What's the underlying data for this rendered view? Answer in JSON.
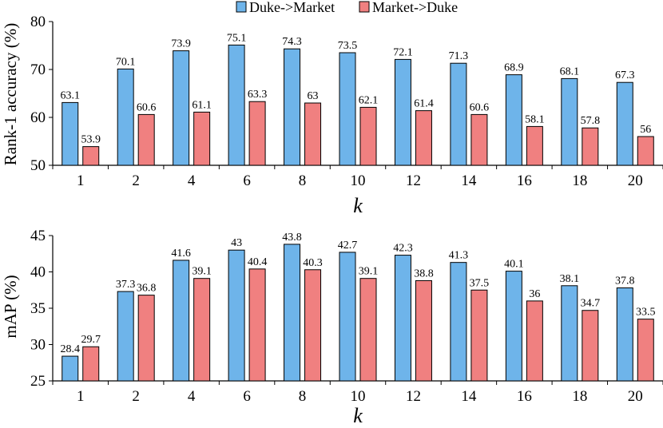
{
  "legend": {
    "series1": "Duke->Market",
    "series2": "Market->Duke"
  },
  "colors": {
    "series1": "#6eb4ea",
    "series2": "#f08080",
    "stroke": "#000000"
  },
  "chart_data": [
    {
      "type": "bar",
      "categories": [
        "1",
        "2",
        "4",
        "6",
        "8",
        "10",
        "12",
        "14",
        "16",
        "18",
        "20"
      ],
      "series": [
        {
          "name": "Duke->Market",
          "values": [
            63.1,
            70.1,
            73.9,
            75.1,
            74.3,
            73.5,
            72.1,
            71.3,
            68.9,
            68.1,
            67.3
          ],
          "labels": [
            "63.1",
            "70.1",
            "73.9",
            "75.1",
            "74.3",
            "73.5",
            "72.1",
            "71.3",
            "68.9",
            "68.1",
            "67.3"
          ]
        },
        {
          "name": "Market->Duke",
          "values": [
            53.9,
            60.6,
            61.1,
            63.3,
            63,
            62.1,
            61.4,
            60.6,
            58.1,
            57.8,
            56
          ],
          "labels": [
            "53.9",
            "60.6",
            "61.1",
            "63.3",
            "63",
            "62.1",
            "61.4",
            "60.6",
            "58.1",
            "57.8",
            "56"
          ]
        }
      ],
      "ylabel": "Rank-1 accuracy (%)",
      "xlabel": "k",
      "ylim": [
        50,
        80
      ],
      "yticks": [
        50,
        60,
        70,
        80
      ],
      "ytick_labels": [
        "50",
        "60",
        "70",
        "80"
      ]
    },
    {
      "type": "bar",
      "categories": [
        "1",
        "2",
        "4",
        "6",
        "8",
        "10",
        "12",
        "14",
        "16",
        "18",
        "20"
      ],
      "series": [
        {
          "name": "Duke->Market",
          "values": [
            28.4,
            37.3,
            41.6,
            43,
            43.8,
            42.7,
            42.3,
            41.3,
            40.1,
            38.1,
            37.8
          ],
          "labels": [
            "28.4",
            "37.3",
            "41.6",
            "43",
            "43.8",
            "42.7",
            "42.3",
            "41.3",
            "40.1",
            "38.1",
            "37.8"
          ]
        },
        {
          "name": "Market->Duke",
          "values": [
            29.7,
            36.8,
            39.1,
            40.4,
            40.3,
            39.1,
            38.8,
            37.5,
            36,
            34.7,
            33.5
          ],
          "labels": [
            "29.7",
            "36.8",
            "39.1",
            "40.4",
            "40.3",
            "39.1",
            "38.8",
            "37.5",
            "36",
            "34.7",
            "33.5"
          ]
        }
      ],
      "ylabel": "mAP (%)",
      "xlabel": "k",
      "ylim": [
        25,
        45
      ],
      "yticks": [
        25,
        30,
        35,
        40,
        45
      ],
      "ytick_labels": [
        "25",
        "30",
        "35",
        "40",
        "45"
      ]
    }
  ]
}
